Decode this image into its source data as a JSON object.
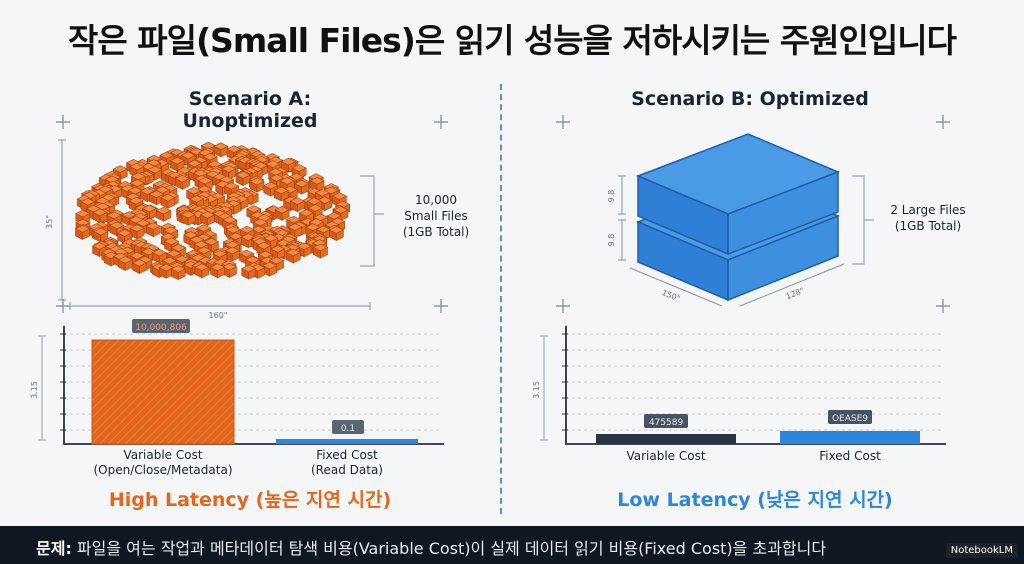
{
  "title": "작은 파일(Small Files)은 읽기 성능을 저하시키는 주원인입니다",
  "scenario_a": {
    "title": "Scenario A: Unoptimized",
    "files_label_line1": "10,000",
    "files_label_line2": "Small Files",
    "files_label_line3": "(1GB Total)",
    "dim_width": "160\"",
    "dim_height": "35\"",
    "latency": "High Latency (높은 지연 시간)",
    "bars": [
      {
        "label_line1": "Variable Cost",
        "label_line2": "(Open/Close/Metadata)",
        "value_label": "10,000,806"
      },
      {
        "label_line1": "Fixed Cost",
        "label_line2": "(Read Data)",
        "value_label": "0.1"
      }
    ],
    "y_axis_label": "3.15"
  },
  "scenario_b": {
    "title": "Scenario B: Optimized",
    "files_label_line1": "2 Large Files",
    "files_label_line2": "(1GB Total)",
    "dim_left": "150\"",
    "dim_right": "128\"",
    "dim_top": "9.8",
    "dim_bottom": "9.8",
    "latency": "Low Latency (낮은 지연 시간)",
    "bars": [
      {
        "label": "Variable Cost",
        "value_label": "475589"
      },
      {
        "label": "Fixed Cost",
        "value_label": "OEASE9"
      }
    ],
    "y_axis_label": "3.15"
  },
  "footer": {
    "prefix": "문제:",
    "text": " 파일을 여는 작업과 메타데이터 탐색 비용(Variable Cost)이 실제 데이터 읽기 비용(Fixed Cost)을 초과합니다",
    "badge": "NotebookLM"
  },
  "colors": {
    "orange": "#e2661b",
    "blue": "#2c86db",
    "footer_bg": "#0f1722"
  }
}
